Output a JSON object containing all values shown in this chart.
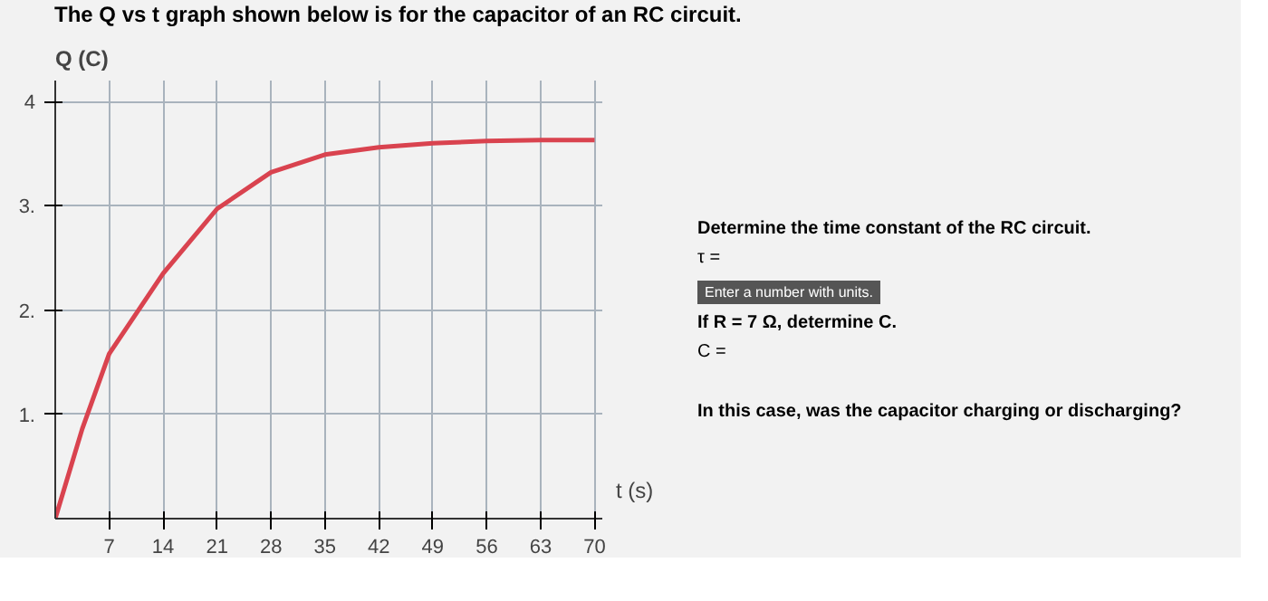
{
  "chart_data": {
    "type": "line",
    "title": "The Q vs t graph shown below is for the capacitor of an RC circuit.",
    "xlabel": "t (s)",
    "ylabel": "Q (C)",
    "x": [
      0,
      3.5,
      7,
      14,
      21,
      28,
      35,
      42,
      49,
      56,
      63,
      70
    ],
    "series": [
      {
        "color": "#d9434f",
        "values": [
          0,
          0.86,
          1.58,
          2.35,
          2.97,
          3.32,
          3.49,
          3.56,
          3.6,
          3.62,
          3.63,
          3.63
        ]
      }
    ],
    "xlim": [
      0,
      71
    ],
    "ylim": [
      0,
      4.2
    ],
    "xticks": [
      7,
      14,
      21,
      28,
      35,
      42,
      49,
      56,
      63,
      70
    ],
    "yticks": [
      {
        "value": 1,
        "label": "1."
      },
      {
        "value": 2,
        "label": "2."
      },
      {
        "value": 3,
        "label": "3."
      },
      4
    ],
    "grid": true,
    "marker": "none",
    "line_style": "solid",
    "annotations": [
      "Determine the time constant of the RC circuit.",
      "τ =",
      "Enter a number with units.",
      "If R = 7 Ω, determine C.",
      "C =",
      "In this case, was the capacitor charging or discharging?"
    ]
  }
}
